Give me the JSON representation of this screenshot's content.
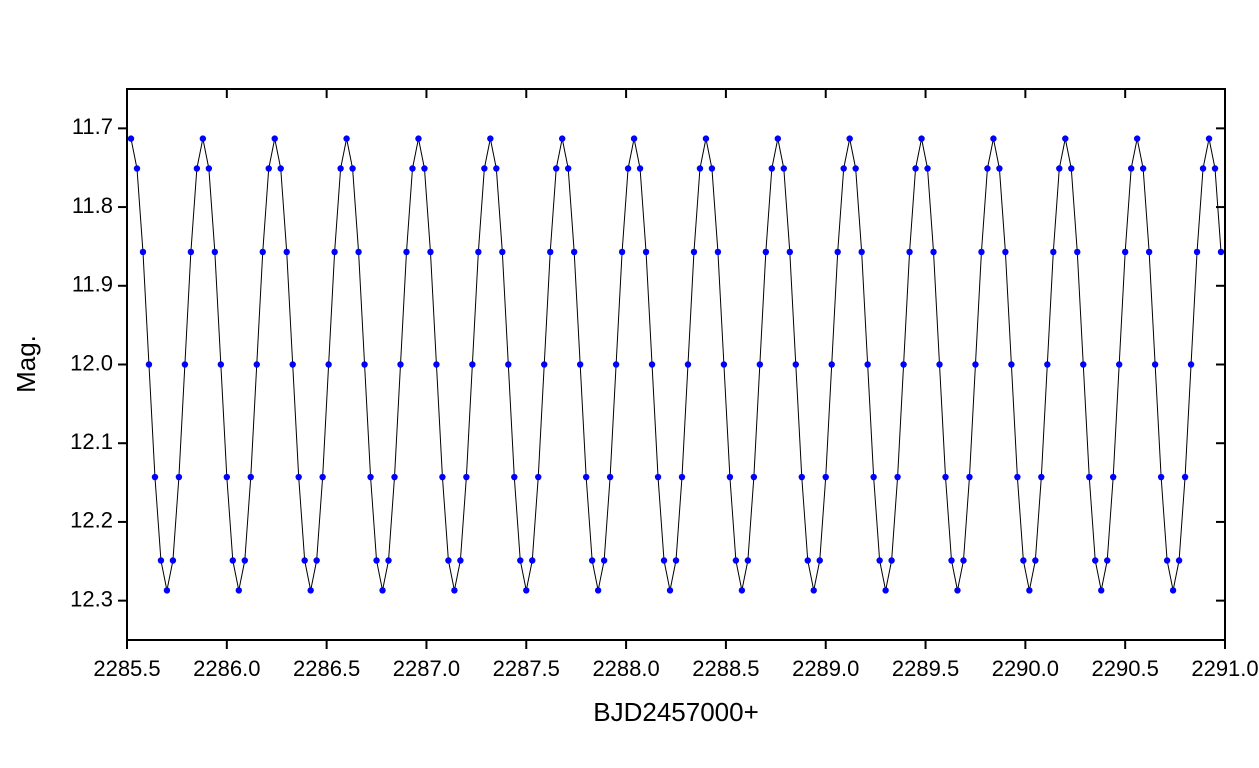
{
  "chart_data": {
    "type": "scatter",
    "x_label": "BJD2457000+",
    "y_label": "Mag.",
    "color": "#0000ff",
    "line_color": "#000000",
    "xlim": [
      2285.5,
      2291.0
    ],
    "xticks": [
      2285.5,
      {
        "value": 2286.0,
        "label": "2286.0"
      },
      2286.5,
      {
        "value": 2287.0,
        "label": "2287.0"
      },
      2287.5,
      {
        "value": 2288.0,
        "label": "2288.0"
      },
      2288.5,
      {
        "value": 2289.0,
        "label": "2289.0"
      },
      2289.5,
      {
        "value": 2290.0,
        "label": "2290.0"
      },
      2290.5,
      {
        "value": 2291.0,
        "label": "2291.0"
      }
    ],
    "ylim": [
      12.35,
      11.65
    ],
    "yticks": [
      11.7,
      11.8,
      11.9,
      {
        "value": 12.0,
        "label": "12.0"
      },
      12.1,
      12.2,
      12.3
    ],
    "x": [
      2285.52,
      2285.55,
      2285.58,
      2285.61,
      2285.64,
      2285.67,
      2285.7,
      2285.73,
      2285.76,
      2285.79,
      2285.82,
      2285.85,
      2285.88,
      2285.91,
      2285.94,
      2285.97,
      2286.0,
      2286.03,
      2286.06,
      2286.09,
      2286.12,
      2286.15,
      2286.18,
      2286.21,
      2286.24,
      2286.27,
      2286.3,
      2286.33,
      2286.36,
      2286.39,
      2286.42,
      2286.45,
      2286.48,
      2286.51,
      2286.54,
      2286.57,
      2286.6,
      2286.63,
      2286.66,
      2286.69,
      2286.72,
      2286.75,
      2286.78,
      2286.81,
      2286.84,
      2286.87,
      2286.9,
      2286.93,
      2286.96,
      2286.99,
      2287.02,
      2287.05,
      2287.08,
      2287.11,
      2287.14,
      2287.17,
      2287.2,
      2287.23,
      2287.26,
      2287.29,
      2287.32,
      2287.35,
      2287.38,
      2287.41,
      2287.44,
      2287.47,
      2287.5,
      2287.53,
      2287.56,
      2287.59,
      2287.62,
      2287.65,
      2287.68,
      2287.71,
      2287.74,
      2287.77,
      2287.8,
      2287.83,
      2287.86,
      2287.89,
      2287.92,
      2287.95,
      2287.98,
      2288.01,
      2288.04,
      2288.07,
      2288.1,
      2288.13,
      2288.16,
      2288.19,
      2288.22,
      2288.25,
      2288.28,
      2288.31,
      2288.34,
      2288.37,
      2288.4,
      2288.43,
      2288.46,
      2288.49,
      2288.52,
      2288.55,
      2288.58,
      2288.61,
      2288.64,
      2288.67,
      2288.7,
      2288.73,
      2288.76,
      2288.79,
      2288.82,
      2288.85,
      2288.88,
      2288.91,
      2288.94,
      2288.97,
      2289.0,
      2289.03,
      2289.06,
      2289.09,
      2289.12,
      2289.15,
      2289.18,
      2289.21,
      2289.24,
      2289.27,
      2289.3,
      2289.33,
      2289.36,
      2289.39,
      2289.42,
      2289.45,
      2289.48,
      2289.51,
      2289.54,
      2289.57,
      2289.6,
      2289.63,
      2289.66,
      2289.69,
      2289.72,
      2289.75,
      2289.78,
      2289.81,
      2289.84,
      2289.87,
      2289.9,
      2289.93,
      2289.96,
      2289.99,
      2290.02,
      2290.05,
      2290.08,
      2290.11,
      2290.14,
      2290.17,
      2290.2,
      2290.23,
      2290.26,
      2290.29,
      2290.32,
      2290.35,
      2290.38,
      2290.41,
      2290.44,
      2290.47,
      2290.5,
      2290.53,
      2290.56,
      2290.59,
      2290.62,
      2290.65,
      2290.68,
      2290.71,
      2290.74,
      2290.77,
      2290.8,
      2290.83,
      2290.86,
      2290.89,
      2290.92,
      2290.95,
      2290.98
    ],
    "values": [
      11.713,
      11.751,
      11.857,
      12.0,
      12.143,
      12.249,
      12.287,
      12.249,
      12.143,
      12.0,
      11.857,
      11.751,
      11.713,
      11.751,
      11.857,
      12.0,
      12.143,
      12.249,
      12.287,
      12.249,
      12.143,
      12.0,
      11.857,
      11.751,
      11.713,
      11.751,
      11.857,
      12.0,
      12.143,
      12.249,
      12.287,
      12.249,
      12.143,
      12.0,
      11.857,
      11.751,
      11.713,
      11.751,
      11.857,
      12.0,
      12.143,
      12.249,
      12.287,
      12.249,
      12.143,
      12.0,
      11.857,
      11.751,
      11.713,
      11.751,
      11.857,
      12.0,
      12.143,
      12.249,
      12.287,
      12.249,
      12.143,
      12.0,
      11.857,
      11.751,
      11.713,
      11.751,
      11.857,
      12.0,
      12.143,
      12.249,
      12.287,
      12.249,
      12.143,
      12.0,
      11.857,
      11.751,
      11.713,
      11.751,
      11.857,
      12.0,
      12.143,
      12.249,
      12.287,
      12.249,
      12.143,
      12.0,
      11.857,
      11.751,
      11.713,
      11.751,
      11.857,
      12.0,
      12.143,
      12.249,
      12.287,
      12.249,
      12.143,
      12.0,
      11.857,
      11.751,
      11.713,
      11.751,
      11.857,
      12.0,
      12.143,
      12.249,
      12.287,
      12.249,
      12.143,
      12.0,
      11.857,
      11.751,
      11.713,
      11.751,
      11.857,
      12.0,
      12.143,
      12.249,
      12.287,
      12.249,
      12.143,
      12.0,
      11.857,
      11.751,
      11.713,
      11.751,
      11.857,
      12.0,
      12.143,
      12.249,
      12.287,
      12.249,
      12.143,
      12.0,
      11.857,
      11.751,
      11.713,
      11.751,
      11.857,
      12.0,
      12.143,
      12.249,
      12.287,
      12.249,
      12.143,
      12.0,
      11.857,
      11.751,
      11.713,
      11.751,
      11.857,
      12.0,
      12.143,
      12.249,
      12.287,
      12.249,
      12.143,
      12.0,
      11.857,
      11.751,
      11.713,
      11.751,
      11.857,
      12.0,
      12.143,
      12.249,
      12.287,
      12.249,
      12.143,
      12.0,
      11.857,
      11.751,
      11.713,
      11.751,
      11.857,
      12.0,
      12.143,
      12.249,
      12.287,
      12.249,
      12.143,
      12.0,
      11.857,
      11.751,
      11.713,
      11.751,
      11.857
    ]
  }
}
